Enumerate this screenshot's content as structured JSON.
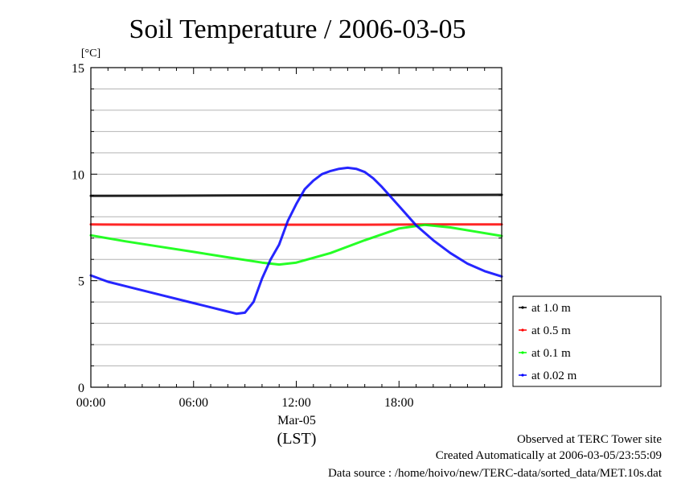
{
  "chart_data": {
    "type": "line",
    "title": "Soil Temperature / 2006-03-05",
    "ylabel": "[°C]",
    "xlabel": "(LST)",
    "date_label": "Mar-05",
    "xlim": [
      0,
      24
    ],
    "ylim": [
      0,
      15
    ],
    "x_ticks": [
      {
        "value": 0,
        "label": "00:00"
      },
      {
        "value": 6,
        "label": "06:00"
      },
      {
        "value": 12,
        "label": "12:00"
      },
      {
        "value": 18,
        "label": "18:00"
      }
    ],
    "y_ticks": [
      {
        "value": 0,
        "label": "0"
      },
      {
        "value": 5,
        "label": "5"
      },
      {
        "value": 10,
        "label": "10"
      },
      {
        "value": 15,
        "label": "15"
      }
    ],
    "grid": true,
    "legend_position": "right",
    "series": [
      {
        "name": "at 1.0 m",
        "color": "#000000",
        "x": [
          0,
          4,
          8,
          12,
          16,
          20,
          24
        ],
        "y": [
          8.98,
          8.99,
          9.0,
          9.01,
          9.02,
          9.02,
          9.03
        ]
      },
      {
        "name": "at 0.5 m",
        "color": "#ff0000",
        "x": [
          0,
          4,
          8,
          12,
          16,
          20,
          24
        ],
        "y": [
          7.64,
          7.63,
          7.63,
          7.63,
          7.63,
          7.64,
          7.64
        ]
      },
      {
        "name": "at 0.1 m",
        "color": "#00ff00",
        "x": [
          0,
          2,
          4,
          6,
          8,
          10,
          11,
          12,
          14,
          16,
          18,
          19.5,
          21,
          22.5,
          24
        ],
        "y": [
          7.13,
          6.85,
          6.6,
          6.35,
          6.1,
          5.85,
          5.76,
          5.85,
          6.3,
          6.9,
          7.45,
          7.62,
          7.5,
          7.3,
          7.1
        ]
      },
      {
        "name": "at 0.02 m",
        "color": "#0000ff",
        "x": [
          0,
          1,
          2,
          4,
          6,
          8,
          8.5,
          9,
          9.5,
          10,
          10.5,
          11,
          11.5,
          12,
          12.5,
          13,
          13.5,
          14,
          14.5,
          15,
          15.5,
          16,
          16.5,
          17,
          18,
          19,
          20,
          21,
          22,
          23,
          24
        ],
        "y": [
          5.25,
          4.95,
          4.75,
          4.35,
          3.95,
          3.55,
          3.45,
          3.5,
          4.0,
          5.1,
          6.0,
          6.7,
          7.8,
          8.6,
          9.3,
          9.7,
          10.0,
          10.15,
          10.25,
          10.3,
          10.25,
          10.1,
          9.8,
          9.4,
          8.5,
          7.6,
          6.9,
          6.3,
          5.8,
          5.45,
          5.2
        ]
      }
    ]
  },
  "footer": {
    "observed": "Observed at TERC Tower site",
    "created": "Created Automatically at 2006-03-05/23:55:09",
    "source": "Data source : /home/hoivo/new/TERC-data/sorted_data/MET.10s.dat"
  }
}
